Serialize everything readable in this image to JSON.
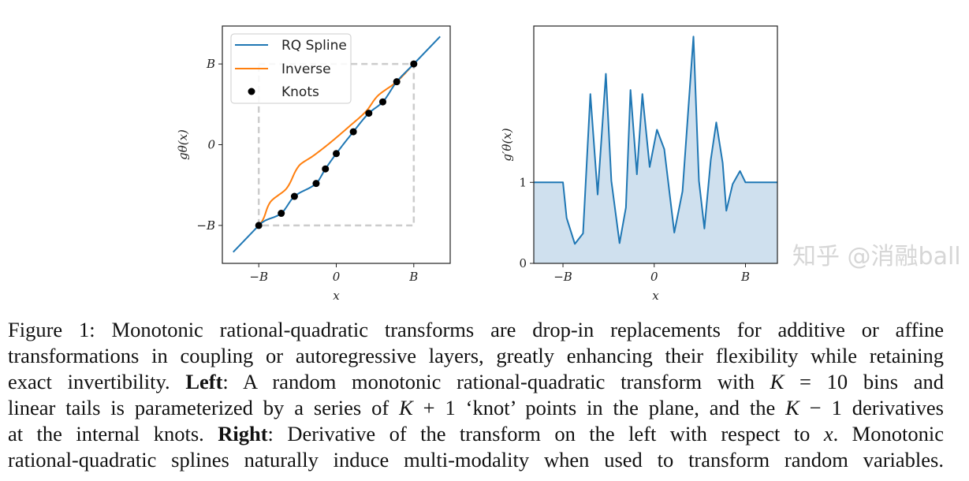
{
  "chart_data": [
    {
      "type": "line",
      "panel": "left",
      "xlabel": "x",
      "ylabel": "gθ(x)",
      "xlim": [
        -1.47,
        1.47
      ],
      "ylim": [
        -1.47,
        1.47
      ],
      "x_ticks": [
        {
          "value": -1,
          "label": "−B"
        },
        {
          "value": 0,
          "label": "0"
        },
        {
          "value": 1,
          "label": "B"
        }
      ],
      "y_ticks": [
        {
          "value": -1,
          "label": "−B"
        },
        {
          "value": 0,
          "label": "0"
        },
        {
          "value": 1,
          "label": "B"
        }
      ],
      "units": "B = 1",
      "legend": {
        "placement": "top-left",
        "entries": [
          "RQ Spline",
          "Inverse",
          "Knots"
        ]
      },
      "tail_range": [
        -1.33,
        1.34
      ],
      "knots": {
        "x": [
          -1,
          -0.71,
          -0.54,
          -0.26,
          -0.14,
          0,
          0.22,
          0.42,
          0.6,
          0.78,
          1
        ],
        "y": [
          -1,
          -0.85,
          -0.64,
          -0.48,
          -0.3,
          -0.11,
          0.16,
          0.39,
          0.53,
          0.78,
          1
        ]
      },
      "series": [
        {
          "name": "RQ Spline",
          "color": "#1f77b4"
        },
        {
          "name": "Inverse",
          "color": "#ff7f0e"
        },
        {
          "name": "Knots",
          "color": "#000000"
        }
      ],
      "bounding_box": {
        "range": [
          -1,
          1
        ],
        "color": "#cccccc",
        "style": "dashed"
      }
    },
    {
      "type": "area",
      "panel": "right",
      "xlabel": "x",
      "ylabel": "g′θ(x)",
      "xlim": [
        -1.32,
        1.35
      ],
      "ylim": [
        0,
        2.93
      ],
      "x_ticks": [
        {
          "value": -1,
          "label": "−B"
        },
        {
          "value": 0,
          "label": "0"
        },
        {
          "value": 1,
          "label": "B"
        }
      ],
      "y_ticks": [
        {
          "value": 0,
          "label": "0"
        },
        {
          "value": 1,
          "label": "1"
        }
      ],
      "line_color": "#1f77b4",
      "fill_color": "#cfe0ee",
      "x": [
        -1.32,
        -1,
        -0.96,
        -0.87,
        -0.78,
        -0.7,
        -0.62,
        -0.53,
        -0.47,
        -0.38,
        -0.31,
        -0.26,
        -0.19,
        -0.13,
        -0.05,
        0.03,
        0.11,
        0.22,
        0.31,
        0.43,
        0.49,
        0.55,
        0.62,
        0.68,
        0.75,
        0.79,
        0.86,
        0.94,
        1,
        1.35
      ],
      "y": [
        1,
        1,
        0.56,
        0.24,
        0.37,
        2.09,
        0.85,
        2.34,
        1.02,
        0.25,
        0.69,
        2.14,
        1.1,
        2.09,
        1.19,
        1.65,
        1.41,
        0.38,
        0.89,
        2.8,
        1.02,
        0.43,
        1.28,
        1.74,
        1.24,
        0.65,
        0.98,
        1.14,
        1,
        1
      ]
    }
  ],
  "caption": {
    "lines": [
      [
        {
          "t": "Figure 1: Monotonic rational-quadratic transforms are drop-in replacements for additive or affine"
        }
      ],
      [
        {
          "t": "transformations in coupling or autoregressive layers, greatly enhancing their flexibility while retaining"
        }
      ],
      [
        {
          "t": "exact invertibility. "
        },
        {
          "t": "Left",
          "s": "b"
        },
        {
          "t": ": A random monotonic rational-quadratic transform with "
        },
        {
          "t": "K",
          "s": "m"
        },
        {
          "t": " = 10 bins and"
        }
      ],
      [
        {
          "t": "linear tails is parameterized by a series of "
        },
        {
          "t": "K",
          "s": "m"
        },
        {
          "t": " + 1 ‘knot’ points in the plane, and the "
        },
        {
          "t": "K",
          "s": "m"
        },
        {
          "t": " − 1 derivatives"
        }
      ],
      [
        {
          "t": "at the internal knots. "
        },
        {
          "t": "Right",
          "s": "b"
        },
        {
          "t": ": Derivative of the transform on the left with respect to "
        },
        {
          "t": "x",
          "s": "m"
        },
        {
          "t": ". Monotonic"
        }
      ],
      [
        {
          "t": "rational-quadratic splines naturally induce multi-modality when used to transform random variables."
        }
      ]
    ]
  },
  "watermark": "知乎 @消融ball"
}
